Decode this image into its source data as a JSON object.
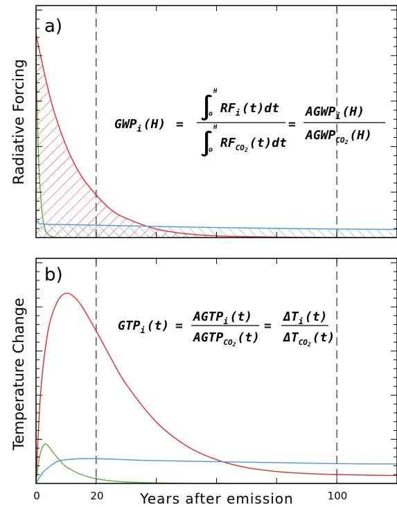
{
  "chart_data": [
    {
      "type": "line",
      "panel_label": "a)",
      "ylabel": "Radiative Forcing",
      "xlim": [
        0,
        120
      ],
      "ylim": [
        0,
        1
      ],
      "reference_lines_x": [
        20,
        100
      ],
      "shaded_integrals": [
        "red series area",
        "blue series area"
      ],
      "series": [
        {
          "color": "#e8272a",
          "x": [
            0,
            5,
            10,
            15,
            20,
            25,
            30,
            40,
            50,
            60,
            80,
            100,
            120
          ],
          "y": [
            0.95,
            0.64,
            0.43,
            0.29,
            0.2,
            0.13,
            0.09,
            0.04,
            0.018,
            0.008,
            0.002,
            0.0005,
            0.0001
          ]
        },
        {
          "color": "#4a96d8",
          "x": [
            0,
            1,
            2,
            5,
            10,
            20,
            40,
            60,
            80,
            100,
            120
          ],
          "y": [
            0.08,
            0.068,
            0.064,
            0.062,
            0.061,
            0.058,
            0.052,
            0.047,
            0.043,
            0.04,
            0.038
          ]
        },
        {
          "color": "#5aae3a",
          "x": [
            0,
            0.5,
            1,
            2,
            3,
            4,
            6,
            8
          ],
          "y": [
            0.88,
            0.53,
            0.32,
            0.12,
            0.04,
            0.015,
            0.002,
            0.0
          ]
        }
      ],
      "equation": {
        "lhs": "GWP",
        "lhs_sub": "i",
        "lhs_arg": "(H)",
        "eq1": "=",
        "num": "RF",
        "num_sub": "i",
        "num_tail": "(t)dt",
        "den": "RF",
        "den_sub": "CO",
        "den_sub2": "2",
        "den_tail": "(t)dt",
        "upper_limit": "H",
        "lower_limit": "o",
        "eq2": "=",
        "r_num": "AGWP",
        "r_num_sub": "i",
        "r_num_tail": "(H)",
        "r_den": "AGWP",
        "r_den_sub": "CO",
        "r_den_sub2": "2",
        "r_den_tail": "(H)"
      }
    },
    {
      "type": "line",
      "panel_label": "b)",
      "ylabel": "Temperature Change",
      "xlabel": "Years after emission",
      "xticks": [
        "0",
        "20",
        "100"
      ],
      "xlim": [
        0,
        120
      ],
      "ylim": [
        0,
        1
      ],
      "reference_lines_x": [
        20,
        100
      ],
      "series": [
        {
          "color": "#e8272a",
          "x": [
            0,
            1,
            2,
            4,
            6,
            8,
            10,
            12,
            15,
            20,
            25,
            30,
            40,
            50,
            60,
            70,
            80,
            90,
            100,
            110,
            120
          ],
          "y": [
            0,
            0.33,
            0.54,
            0.77,
            0.88,
            0.94,
            0.96,
            0.95,
            0.9,
            0.77,
            0.63,
            0.5,
            0.31,
            0.19,
            0.12,
            0.08,
            0.06,
            0.05,
            0.045,
            0.042,
            0.04
          ]
        },
        {
          "color": "#4a96d8",
          "x": [
            0,
            2,
            4,
            7,
            10,
            15,
            20,
            25,
            30,
            40,
            60,
            80,
            100,
            120
          ],
          "y": [
            0,
            0.05,
            0.08,
            0.11,
            0.12,
            0.125,
            0.125,
            0.123,
            0.12,
            0.115,
            0.11,
            0.105,
            0.1,
            0.098
          ]
        },
        {
          "color": "#5aae3a",
          "x": [
            0,
            1,
            2,
            3,
            4,
            6,
            8,
            10,
            15,
            20,
            25,
            30,
            40,
            50,
            60,
            80,
            100,
            120
          ],
          "y": [
            0,
            0.12,
            0.18,
            0.2,
            0.19,
            0.15,
            0.115,
            0.085,
            0.045,
            0.024,
            0.013,
            0.007,
            0.003,
            0.001,
            0.0004,
            0.0001,
            0.0,
            0.0
          ]
        }
      ],
      "equation": {
        "lhs": "GTP",
        "lhs_sub": "i",
        "lhs_arg": "(t)",
        "eq1": "=",
        "num": "AGTP",
        "num_sub": "i",
        "num_tail": "(t)",
        "den": "AGTP",
        "den_sub": "CO",
        "den_sub2": "2",
        "den_tail": "(t)",
        "eq2": "=",
        "r_num": "ΔT",
        "r_num_sub": "i",
        "r_num_tail": "(t)",
        "r_den": "ΔT",
        "r_den_sub": "CO",
        "r_den_sub2": "2",
        "r_den_tail": "(t)"
      }
    }
  ]
}
